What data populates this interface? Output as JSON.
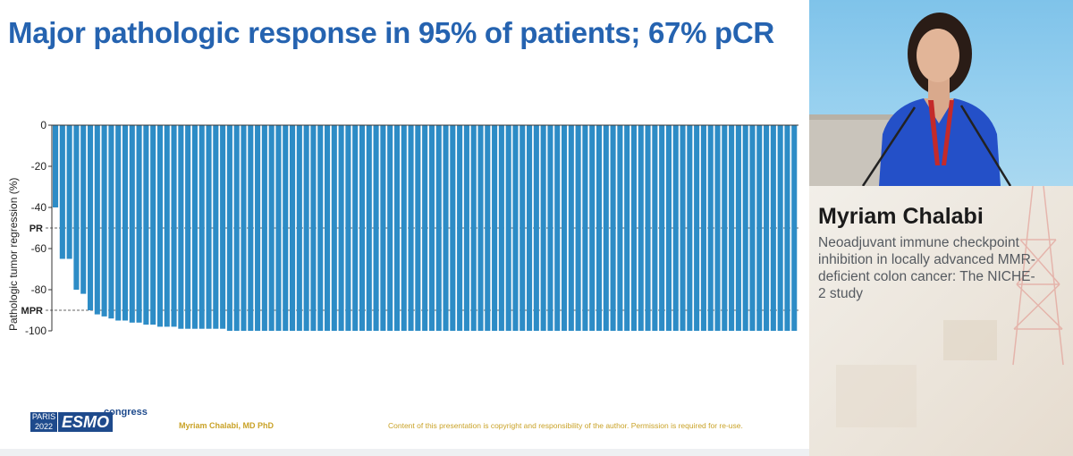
{
  "slide": {
    "title": "Major pathologic response in 95% of patients; 67% pCR",
    "footer": {
      "logo_city_year": "PARIS 2022",
      "logo_city": "PARIS",
      "logo_year": "2022",
      "logo_brand": "ESMO",
      "logo_suffix": "congress",
      "author": "Myriam Chalabi, MD PhD",
      "copyright": "Content of this presentation is copyright and responsibility of the author. Permission is required for re-use."
    }
  },
  "chart_data": {
    "type": "bar",
    "title": "",
    "xlabel": "",
    "ylabel": "Pathologic tumor regression (%)",
    "ylim": [
      -100,
      0
    ],
    "yticks": [
      0,
      -20,
      -40,
      -60,
      -80,
      -100
    ],
    "reference_lines": [
      {
        "label": "PR",
        "value": -50
      },
      {
        "label": "MPR",
        "value": -90
      }
    ],
    "values": [
      -40,
      -65,
      -65,
      -80,
      -82,
      -90,
      -92,
      -93,
      -94,
      -95,
      -95,
      -96,
      -96,
      -97,
      -97,
      -98,
      -98,
      -98,
      -99,
      -99,
      -99,
      -99,
      -99,
      -99,
      -99,
      -100,
      -100,
      -100,
      -100,
      -100,
      -100,
      -100,
      -100,
      -100,
      -100,
      -100,
      -100,
      -100,
      -100,
      -100,
      -100,
      -100,
      -100,
      -100,
      -100,
      -100,
      -100,
      -100,
      -100,
      -100,
      -100,
      -100,
      -100,
      -100,
      -100,
      -100,
      -100,
      -100,
      -100,
      -100,
      -100,
      -100,
      -100,
      -100,
      -100,
      -100,
      -100,
      -100,
      -100,
      -100,
      -100,
      -100,
      -100,
      -100,
      -100,
      -100,
      -100,
      -100,
      -100,
      -100,
      -100,
      -100,
      -100,
      -100,
      -100,
      -100,
      -100,
      -100,
      -100,
      -100,
      -100,
      -100,
      -100,
      -100,
      -100,
      -100,
      -100,
      -100,
      -100,
      -100,
      -100,
      -100,
      -100,
      -100,
      -100,
      -100,
      -100
    ],
    "bar_color": "#2d8cc6",
    "grid": false
  },
  "speaker": {
    "name": "Myriam Chalabi",
    "talk_title": "Neoadjuvant immune checkpoint inhibition in locally advanced MMR-deficient colon cancer: The NICHE-2 study"
  }
}
